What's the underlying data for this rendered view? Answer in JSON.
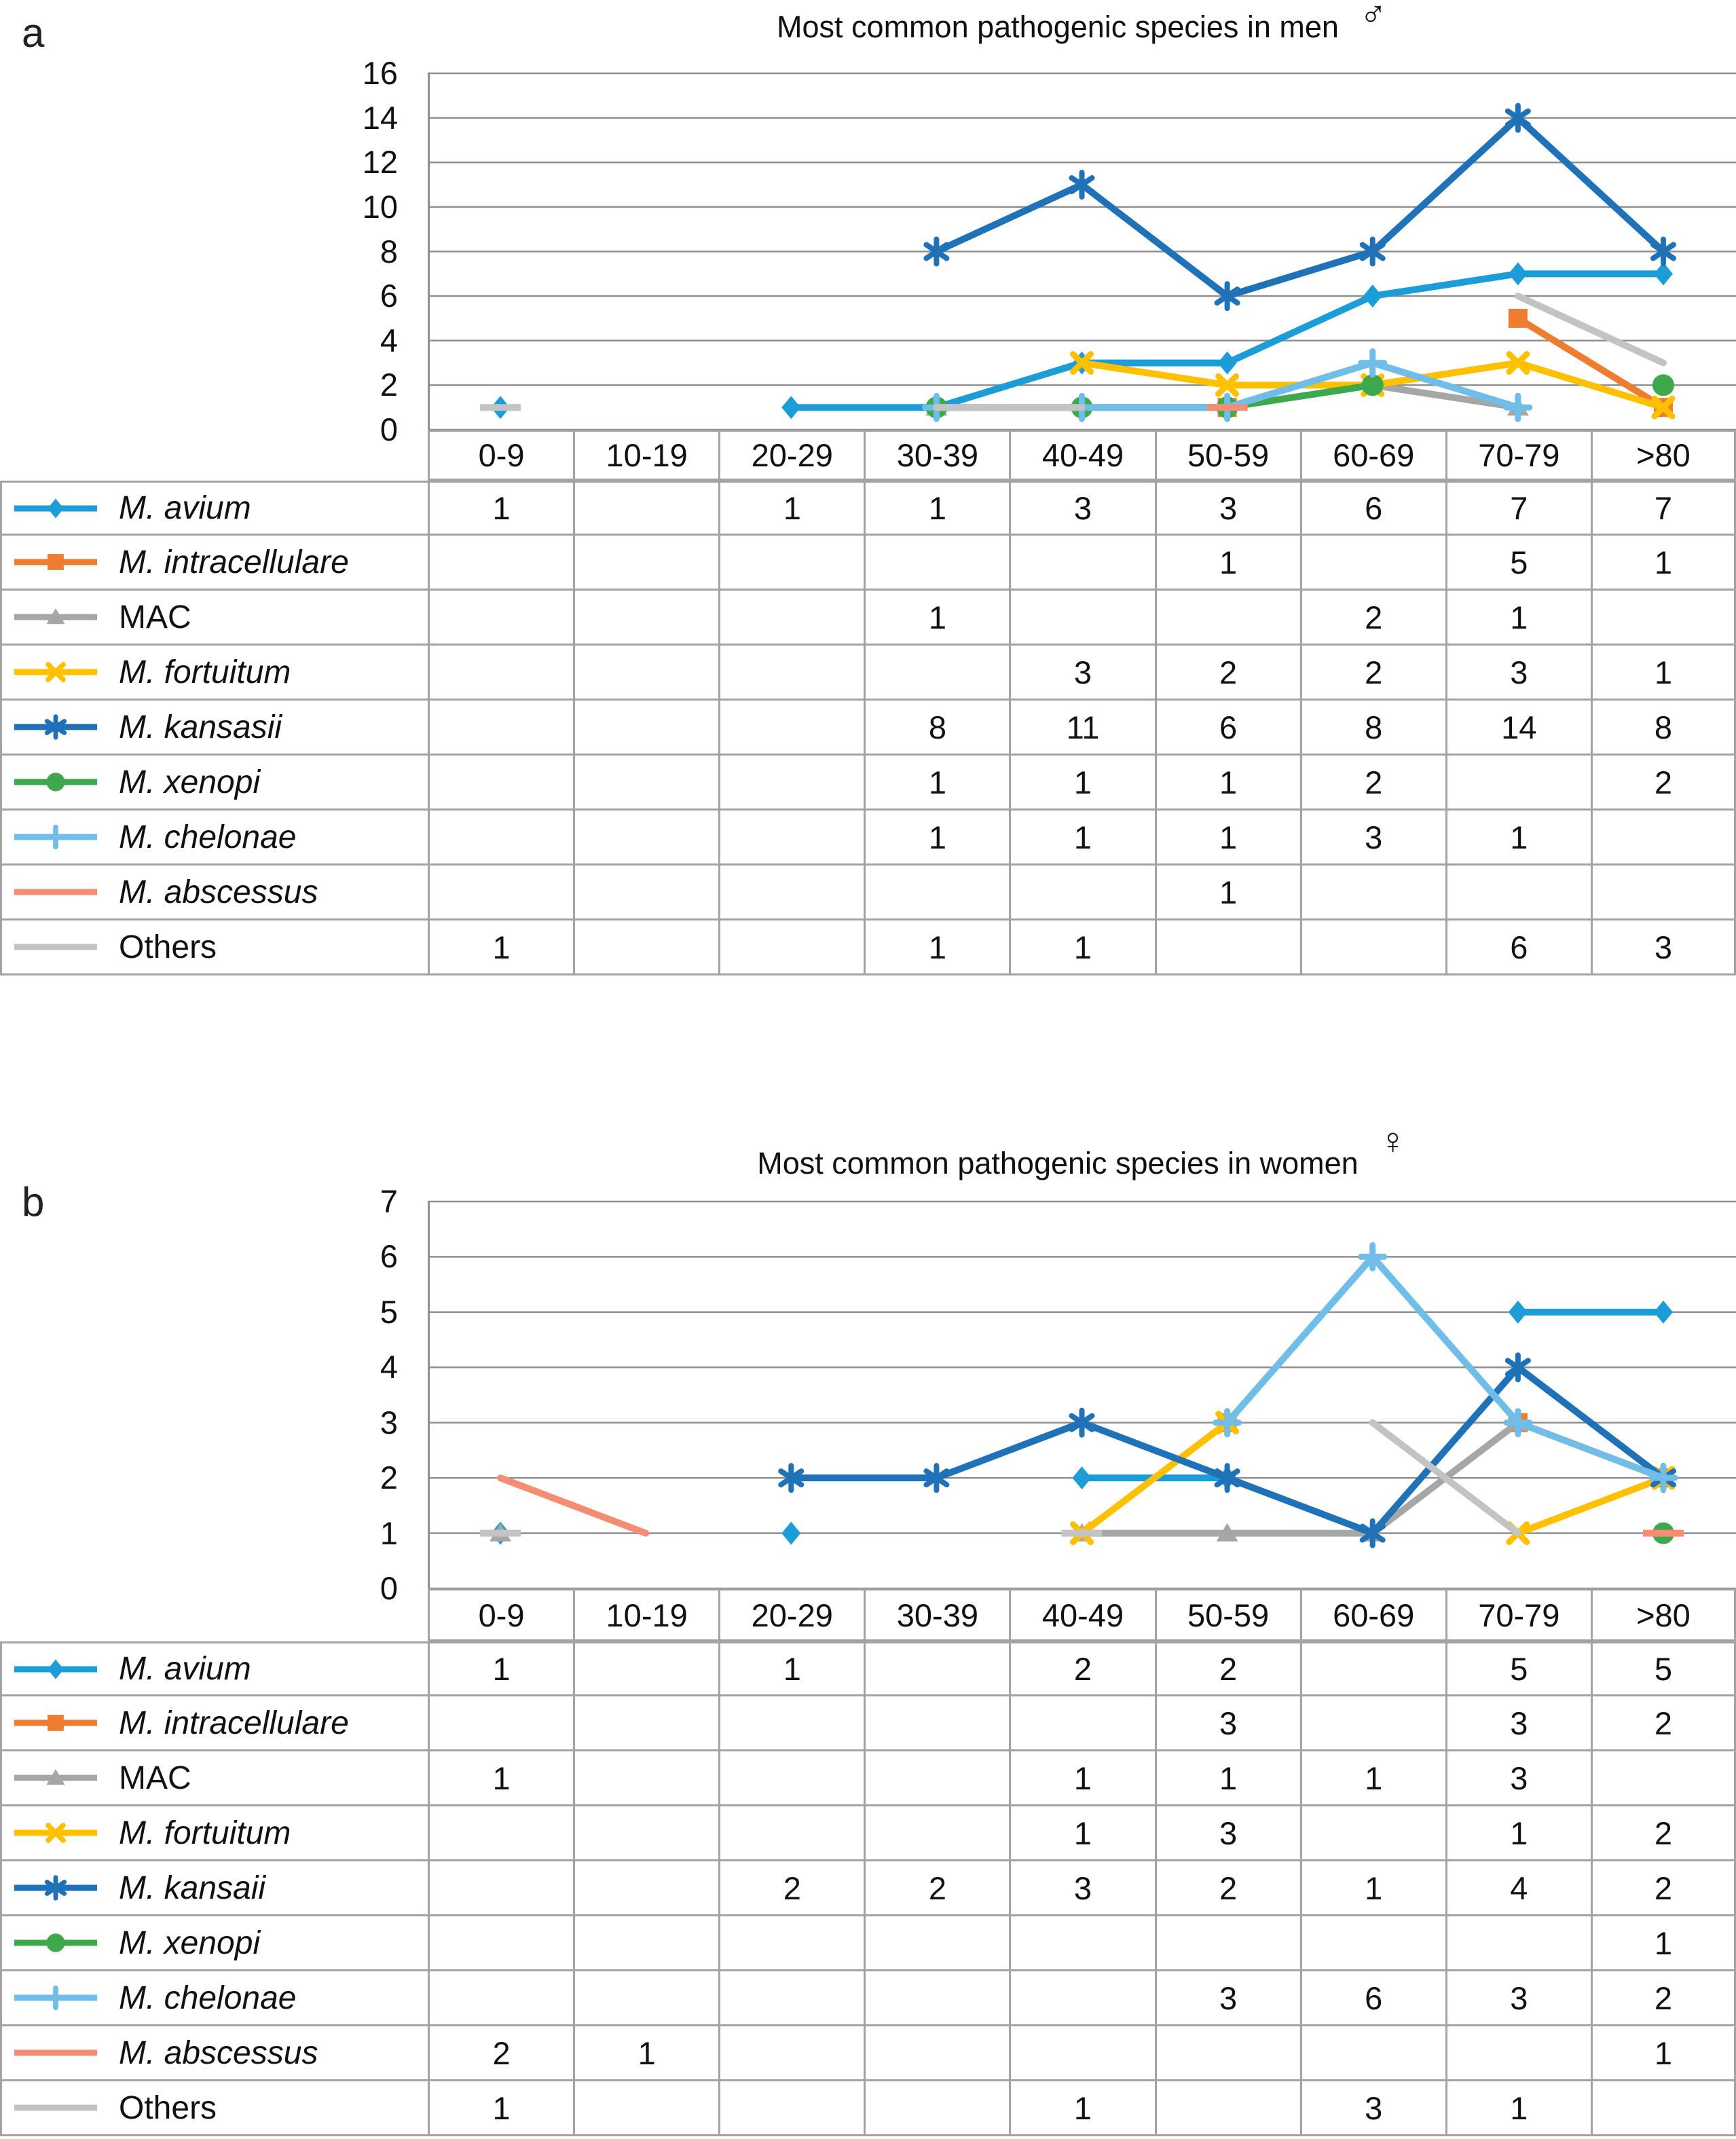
{
  "chart_data": [
    {
      "type": "line",
      "panel_label": "a",
      "title": "Most common pathogenic species in men",
      "title_symbol": "♂",
      "categories": [
        "0-9",
        "10-19",
        "20-29",
        "30-39",
        "40-49",
        "50-59",
        "60-69",
        "70-79",
        ">80"
      ],
      "ylim": [
        0,
        16
      ],
      "ytick_step": 2,
      "grid": true,
      "legend_position": "table-left",
      "series": [
        {
          "name": "M. avium",
          "italic": true,
          "color": "#1C9DD8",
          "marker": "diamond",
          "values": [
            1,
            null,
            1,
            1,
            3,
            3,
            6,
            7,
            7
          ]
        },
        {
          "name": "M. intracellulare",
          "italic": true,
          "color": "#ED7D31",
          "marker": "square",
          "values": [
            null,
            null,
            null,
            null,
            null,
            1,
            null,
            5,
            1
          ]
        },
        {
          "name": "MAC",
          "italic": false,
          "color": "#A6A6A6",
          "marker": "triangle",
          "values": [
            null,
            null,
            null,
            1,
            null,
            null,
            2,
            1,
            null
          ]
        },
        {
          "name": "M. fortuitum",
          "italic": true,
          "color": "#FFC000",
          "marker": "x",
          "values": [
            null,
            null,
            null,
            null,
            3,
            2,
            2,
            3,
            1
          ]
        },
        {
          "name": "M. kansasii",
          "italic": true,
          "color": "#1F72B8",
          "marker": "asterisk",
          "values": [
            null,
            null,
            null,
            8,
            11,
            6,
            8,
            14,
            8
          ]
        },
        {
          "name": "M. xenopi",
          "italic": true,
          "color": "#3EA84C",
          "marker": "circle",
          "values": [
            null,
            null,
            null,
            1,
            1,
            1,
            2,
            null,
            2
          ]
        },
        {
          "name": "M. chelonae",
          "italic": true,
          "color": "#70BDE8",
          "marker": "plus",
          "values": [
            null,
            null,
            null,
            1,
            1,
            1,
            3,
            1,
            null
          ]
        },
        {
          "name": "M. abscessus",
          "italic": true,
          "color": "#F58D75",
          "marker": "none",
          "values": [
            null,
            null,
            null,
            null,
            null,
            1,
            null,
            null,
            null
          ]
        },
        {
          "name": "Others",
          "italic": false,
          "color": "#C3C3C3",
          "marker": "none",
          "values": [
            1,
            null,
            null,
            1,
            1,
            null,
            null,
            6,
            3
          ]
        }
      ]
    },
    {
      "type": "line",
      "panel_label": "b",
      "title": "Most common pathogenic species in women",
      "title_symbol": "♀",
      "categories": [
        "0-9",
        "10-19",
        "20-29",
        "30-39",
        "40-49",
        "50-59",
        "60-69",
        "70-79",
        ">80"
      ],
      "ylim": [
        0,
        7
      ],
      "ytick_step": 1,
      "grid": true,
      "legend_position": "table-left",
      "series": [
        {
          "name": "M. avium",
          "italic": true,
          "color": "#1C9DD8",
          "marker": "diamond",
          "values": [
            1,
            null,
            1,
            null,
            2,
            2,
            null,
            5,
            5
          ]
        },
        {
          "name": "M. intracellulare",
          "italic": true,
          "color": "#ED7D31",
          "marker": "square",
          "values": [
            null,
            null,
            null,
            null,
            null,
            3,
            null,
            3,
            2
          ]
        },
        {
          "name": "MAC",
          "italic": false,
          "color": "#A6A6A6",
          "marker": "triangle",
          "values": [
            1,
            null,
            null,
            null,
            1,
            1,
            1,
            3,
            null
          ]
        },
        {
          "name": "M. fortuitum",
          "italic": true,
          "color": "#FFC000",
          "marker": "x",
          "values": [
            null,
            null,
            null,
            null,
            1,
            3,
            null,
            1,
            2
          ]
        },
        {
          "name": "M. kansaii",
          "italic": true,
          "color": "#1F72B8",
          "marker": "asterisk",
          "values": [
            null,
            null,
            2,
            2,
            3,
            2,
            1,
            4,
            2
          ]
        },
        {
          "name": "M. xenopi",
          "italic": true,
          "color": "#3EA84C",
          "marker": "circle",
          "values": [
            null,
            null,
            null,
            null,
            null,
            null,
            null,
            null,
            1
          ]
        },
        {
          "name": "M. chelonae",
          "italic": true,
          "color": "#70BDE8",
          "marker": "plus",
          "values": [
            null,
            null,
            null,
            null,
            null,
            3,
            6,
            3,
            2
          ]
        },
        {
          "name": "M. abscessus",
          "italic": true,
          "color": "#F58D75",
          "marker": "none",
          "values": [
            2,
            1,
            null,
            null,
            null,
            null,
            null,
            null,
            1
          ]
        },
        {
          "name": "Others",
          "italic": false,
          "color": "#C3C3C3",
          "marker": "none",
          "values": [
            1,
            null,
            null,
            null,
            1,
            null,
            3,
            1,
            null
          ]
        }
      ]
    }
  ]
}
